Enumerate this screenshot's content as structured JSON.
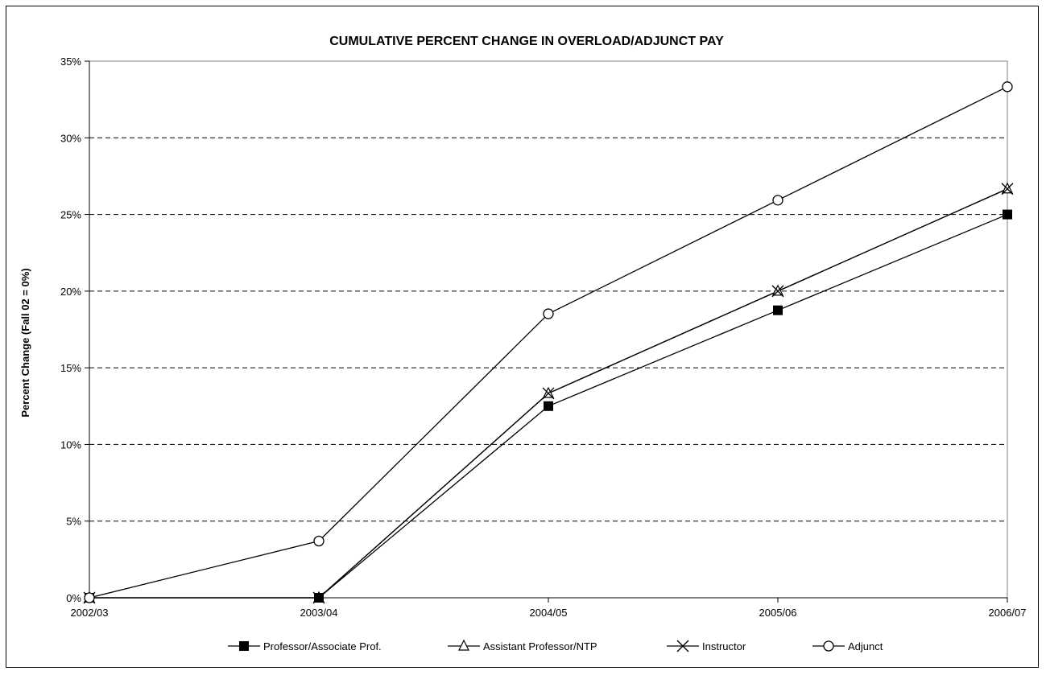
{
  "chart_data": {
    "type": "line",
    "title": "CUMULATIVE PERCENT CHANGE IN OVERLOAD/ADJUNCT PAY",
    "xlabel": "",
    "ylabel": "Percent Change (Fall 02 = 0%)",
    "categories": [
      "2002/03",
      "2003/04",
      "2004/05",
      "2005/06",
      "2006/07"
    ],
    "ylim": [
      0,
      35
    ],
    "yticks": [
      0,
      5,
      10,
      15,
      20,
      25,
      30,
      35
    ],
    "ytick_labels": [
      "0%",
      "5%",
      "10%",
      "15%",
      "20%",
      "25%",
      "30%",
      "35%"
    ],
    "grid": "horizontal dashed",
    "legend_position": "bottom",
    "series": [
      {
        "name": "Professor/Associate Prof.",
        "marker": "filled-square",
        "values": [
          0,
          0,
          12.5,
          18.75,
          25
        ]
      },
      {
        "name": "Assistant Professor/NTP",
        "marker": "open-triangle",
        "values": [
          0,
          0,
          13.33,
          20,
          26.67
        ]
      },
      {
        "name": "Instructor",
        "marker": "x",
        "values": [
          0,
          0,
          13.33,
          20,
          26.67
        ]
      },
      {
        "name": "Adjunct",
        "marker": "open-circle",
        "values": [
          0,
          3.7,
          18.52,
          25.93,
          33.33
        ]
      }
    ],
    "colors": {
      "line": "#000000",
      "grid": "#000000",
      "plot_border": "#808080"
    }
  }
}
